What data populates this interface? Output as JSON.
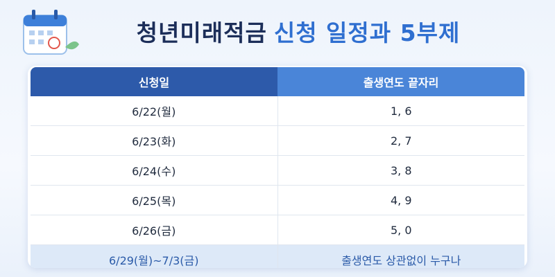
{
  "title": {
    "main": "청년미래적금",
    "highlight": "신청 일정과 5부제"
  },
  "table": {
    "header": [
      "신청일",
      "출생연도 끝자리"
    ],
    "rows": [
      [
        "6/22(월)",
        "1, 6"
      ],
      [
        "6/23(화)",
        "2, 7"
      ],
      [
        "6/24(수)",
        "3, 8"
      ],
      [
        "6/25(목)",
        "4, 9"
      ],
      [
        "6/26(금)",
        "5, 0"
      ],
      [
        "6/29(월)~7/3(금)",
        "출생연도 상관없이 누구나"
      ]
    ]
  }
}
